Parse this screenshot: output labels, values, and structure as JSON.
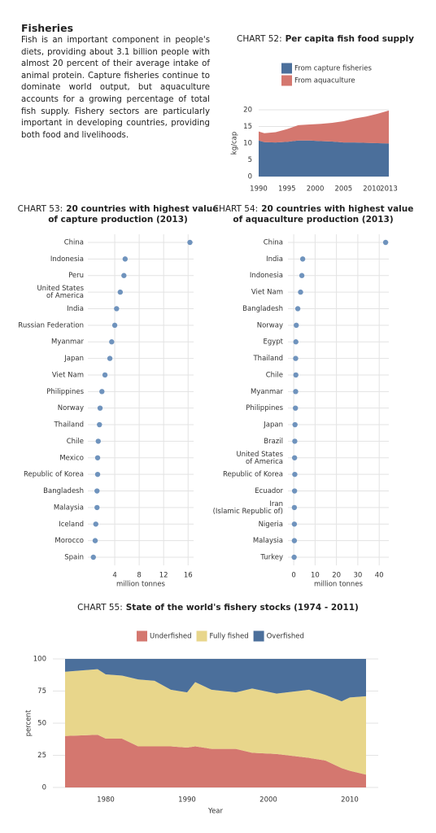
{
  "header": {
    "title": "Fisheries",
    "text": "Fish is an important component in people's diets, providing about 3.1 billion people with almost 20 percent of their average intake of animal protein.  Capture fisheries continue to dominate world output, but aquaculture accounts for a growing percentage of total fish supply.  Fishery sectors are particularly important in developing countries, providing both food and livelihoods."
  },
  "chart_data": [
    {
      "type": "area",
      "stacked": true,
      "label": "CHART 52:",
      "title": [
        "Per capita fish food supply"
      ],
      "y_label": "kg/cap",
      "x": [
        1990,
        1991,
        1993,
        1995,
        1997,
        1999,
        2001,
        2003,
        2005,
        2007,
        2009,
        2011,
        2013
      ],
      "series": [
        {
          "name": "From capture fisheries",
          "color": "#4b6f9b",
          "values": [
            10.8,
            10.3,
            10.2,
            10.4,
            10.8,
            10.8,
            10.6,
            10.5,
            10.2,
            10.2,
            10.1,
            10.0,
            9.9
          ]
        },
        {
          "name": "From aquaculture",
          "color": "#d4776f",
          "values": [
            2.7,
            2.7,
            3.1,
            3.8,
            4.6,
            4.8,
            5.2,
            5.6,
            6.4,
            7.2,
            7.9,
            8.8,
            9.9
          ]
        }
      ],
      "xlim": [
        1990,
        2013
      ],
      "xticks": [
        1990,
        1995,
        2000,
        2005,
        2010,
        2013
      ],
      "ylim": [
        0,
        20
      ],
      "yticks": [
        0,
        5,
        10,
        15,
        20
      ],
      "grid": true,
      "legend": "top"
    },
    {
      "type": "dot",
      "label": "CHART 53:",
      "title": [
        "20 countries with highest value",
        "of capture production (2013)"
      ],
      "x_label": "million tonnes",
      "color": "#6f93bd",
      "categories": [
        "China",
        "Indonesia",
        "Peru",
        [
          "United States",
          "of America"
        ],
        "India",
        "Russian Federation",
        "Myanmar",
        "Japan",
        "Viet Nam",
        "Philippines",
        "Norway",
        "Thailand",
        "Chile",
        "Mexico",
        "Republic of Korea",
        "Bangladesh",
        "Malaysia",
        "Iceland",
        "Morocco",
        "Spain"
      ],
      "values": [
        16.3,
        5.7,
        5.5,
        4.9,
        4.3,
        4.0,
        3.5,
        3.2,
        2.4,
        1.9,
        1.6,
        1.5,
        1.3,
        1.2,
        1.2,
        1.1,
        1.1,
        0.9,
        0.8,
        0.5
      ],
      "xlim": [
        -0.4,
        16.9
      ],
      "xticks": [
        4,
        8,
        12,
        16
      ],
      "grid": true
    },
    {
      "type": "dot",
      "label": "CHART 54:",
      "title": [
        "20 countries with highest value",
        "of aquaculture production (2013)"
      ],
      "x_label": "million tonnes",
      "color": "#6f93bd",
      "categories": [
        "China",
        "India",
        "Indonesia",
        "Viet Nam",
        "Bangladesh",
        "Norway",
        "Egypt",
        "Thailand",
        "Chile",
        "Myanmar",
        "Philippines",
        "Japan",
        "Brazil",
        [
          "United States",
          "of America"
        ],
        "Republic of Korea",
        "Ecuador",
        [
          "Iran",
          "(Islamic Republic of)"
        ],
        "Nigeria",
        "Malaysia",
        "Turkey"
      ],
      "values": [
        43,
        4.2,
        3.8,
        3.2,
        1.9,
        1.2,
        1.0,
        0.9,
        1.0,
        0.9,
        0.8,
        0.6,
        0.5,
        0.4,
        0.5,
        0.4,
        0.3,
        0.3,
        0.3,
        0.2
      ],
      "xlim": [
        -2.7,
        44.5
      ],
      "xticks": [
        0,
        10,
        20,
        30,
        40
      ],
      "grid": true
    },
    {
      "type": "area",
      "stacked": true,
      "label": "CHART 55:",
      "title": [
        "State of the world's fishery stocks (1974 - 2011)"
      ],
      "x_label": "Year",
      "y_label": "percent",
      "x": [
        1975,
        1979,
        1980,
        1982,
        1984,
        1986,
        1988,
        1990,
        1991,
        1993,
        1996,
        1998,
        2001,
        2005,
        2007,
        2009,
        2010,
        2012
      ],
      "series": [
        {
          "name": "Underfished",
          "color": "#d4776f",
          "values": [
            40,
            41,
            38,
            38,
            32,
            32,
            32,
            31,
            32,
            30,
            30,
            27,
            26,
            23,
            21,
            15,
            13,
            10
          ]
        },
        {
          "name": "Fully fished",
          "color": "#e8d68b",
          "values": [
            50,
            51,
            50,
            49,
            52,
            51,
            44,
            43,
            50,
            46,
            44,
            50,
            47,
            53,
            51,
            52,
            57,
            61
          ]
        },
        {
          "name": "Overfished",
          "color": "#4b6f9b",
          "values": [
            10,
            8,
            12,
            13,
            16,
            17,
            24,
            26,
            18,
            24,
            26,
            23,
            27,
            24,
            28,
            33,
            30,
            29
          ]
        }
      ],
      "xlim": [
        1973.5,
        2013.5
      ],
      "xticks": [
        1980,
        1990,
        2000,
        2010
      ],
      "ylim": [
        0,
        100
      ],
      "yticks": [
        0,
        25,
        50,
        75,
        100
      ],
      "grid": true,
      "legend": "top"
    }
  ]
}
